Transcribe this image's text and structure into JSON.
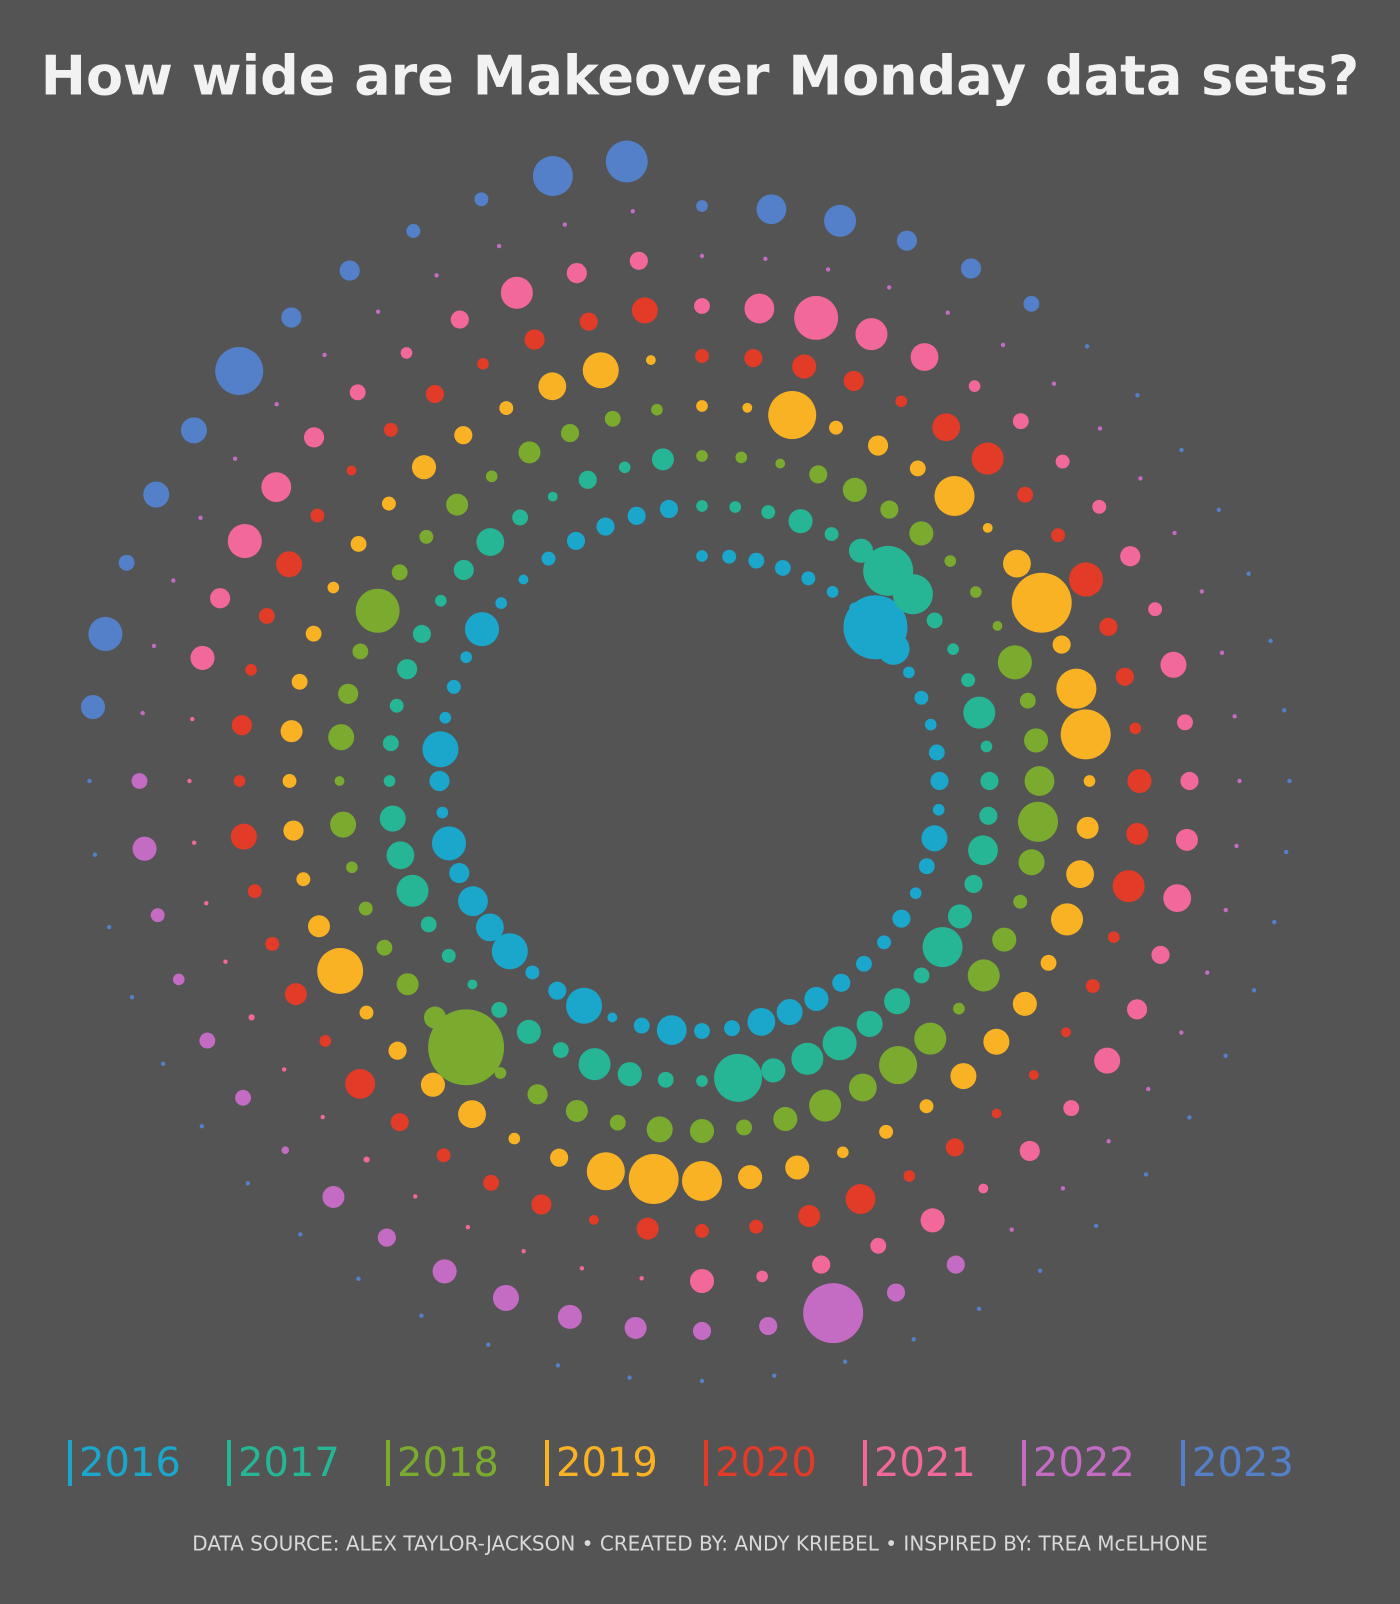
{
  "chart_data": {
    "type": "dot-spiral",
    "title": "How wide are Makeover Monday data sets?",
    "footer": "DATA SOURCE: ALEX TAYLOR-JACKSON  •  CREATED BY: ANDY KRIEBEL  •  INSPIRED BY: TREA McELHONE",
    "series": [
      {
        "name": "2016",
        "color": "#1ba6cc",
        "values": [
          7,
          10,
          13,
          13,
          10,
          7,
          7,
          212,
          53,
          7,
          10,
          7,
          13,
          17,
          7,
          35,
          13,
          7,
          17,
          10,
          13,
          17,
          30,
          35,
          40,
          13,
          13,
          46,
          13,
          5,
          67,
          17,
          10,
          67,
          40,
          46,
          21,
          60,
          7,
          21,
          67,
          7,
          10,
          7,
          60,
          7,
          5,
          10,
          17,
          17,
          17,
          17
        ]
      },
      {
        "name": "2017",
        "color": "#26b595",
        "values": [
          7,
          7,
          10,
          30,
          10,
          30,
          129,
          83,
          13,
          7,
          10,
          53,
          7,
          17,
          17,
          46,
          17,
          30,
          83,
          13,
          35,
          35,
          60,
          53,
          30,
          119,
          7,
          13,
          30,
          53,
          13,
          30,
          13,
          5,
          10,
          13,
          53,
          40,
          35,
          7,
          13,
          10,
          21,
          17,
          7,
          21,
          40,
          13,
          5,
          17,
          7,
          25
        ]
      },
      {
        "name": "2018",
        "color": "#7aab2e",
        "values": [
          7,
          7,
          5,
          17,
          30,
          17,
          30,
          7,
          7,
          5,
          60,
          13,
          30,
          46,
          83,
          35,
          10,
          30,
          53,
          7,
          53,
          75,
          40,
          53,
          30,
          13,
          30,
          35,
          13,
          25,
          21,
          7,
          298,
          25,
          25,
          13,
          10,
          7,
          35,
          5,
          35,
          21,
          13,
          100,
          13,
          10,
          25,
          7,
          25,
          17,
          13,
          7
        ]
      },
      {
        "name": "2019",
        "color": "#f9b224",
        "values": [
          7,
          5,
          119,
          10,
          21,
          13,
          83,
          5,
          40,
          186,
          17,
          83,
          129,
          7,
          25,
          40,
          53,
          13,
          30,
          35,
          35,
          10,
          10,
          7,
          30,
          30,
          83,
          129,
          75,
          17,
          7,
          40,
          30,
          17,
          10,
          109,
          25,
          10,
          21,
          10,
          25,
          13,
          13,
          7,
          13,
          10,
          30,
          17,
          10,
          40,
          67,
          5
        ]
      },
      {
        "name": "2020",
        "color": "#e23b27",
        "values": [
          10,
          17,
          30,
          21,
          7,
          40,
          53,
          13,
          10,
          60,
          17,
          17,
          7,
          30,
          25,
          53,
          7,
          10,
          5,
          5,
          5,
          17,
          7,
          46,
          25,
          10,
          10,
          25,
          5,
          21,
          13,
          10,
          17,
          46,
          7,
          25,
          10,
          10,
          35,
          7,
          21,
          7,
          13,
          35,
          10,
          5,
          10,
          17,
          7,
          21,
          17,
          35
        ]
      },
      {
        "name": "2021",
        "color": "#f3689a",
        "values": [
          13,
          46,
          100,
          53,
          40,
          7,
          13,
          10,
          10,
          21,
          10,
          35,
          13,
          17,
          25,
          40,
          17,
          21,
          35,
          13,
          21,
          5,
          30,
          13,
          17,
          7,
          30,
          1,
          1,
          1,
          1,
          1,
          2,
          1,
          1,
          2,
          1,
          1,
          1,
          1,
          1,
          30,
          21,
          60,
          46,
          21,
          13,
          7,
          17,
          53,
          21,
          17
        ]
      },
      {
        "name": "2022",
        "color": "#c46bc4",
        "values": [
          1,
          1,
          1,
          1,
          1,
          1,
          1,
          1,
          1,
          1,
          1,
          1,
          1,
          1,
          1,
          1,
          1,
          1,
          1,
          1,
          1,
          1,
          17,
          17,
          186,
          17,
          17,
          25,
          30,
          35,
          30,
          17,
          25,
          3,
          13,
          13,
          7,
          10,
          30,
          13,
          1,
          1,
          1,
          1,
          1,
          1,
          1,
          1,
          1,
          1,
          1,
          1
        ]
      },
      {
        "name": "2023",
        "color": "#5380c8",
        "values": [
          7,
          46,
          53,
          21,
          21,
          13,
          1,
          1,
          1,
          1,
          1,
          1,
          1,
          1,
          1,
          1,
          1,
          1,
          1,
          1,
          1,
          1,
          1,
          1,
          1,
          1,
          1,
          1,
          1,
          1,
          1,
          1,
          1,
          1,
          1,
          1,
          1,
          1,
          1,
          1,
          30,
          60,
          13,
          35,
          35,
          119,
          21,
          21,
          10,
          10,
          83,
          91
        ]
      }
    ]
  }
}
